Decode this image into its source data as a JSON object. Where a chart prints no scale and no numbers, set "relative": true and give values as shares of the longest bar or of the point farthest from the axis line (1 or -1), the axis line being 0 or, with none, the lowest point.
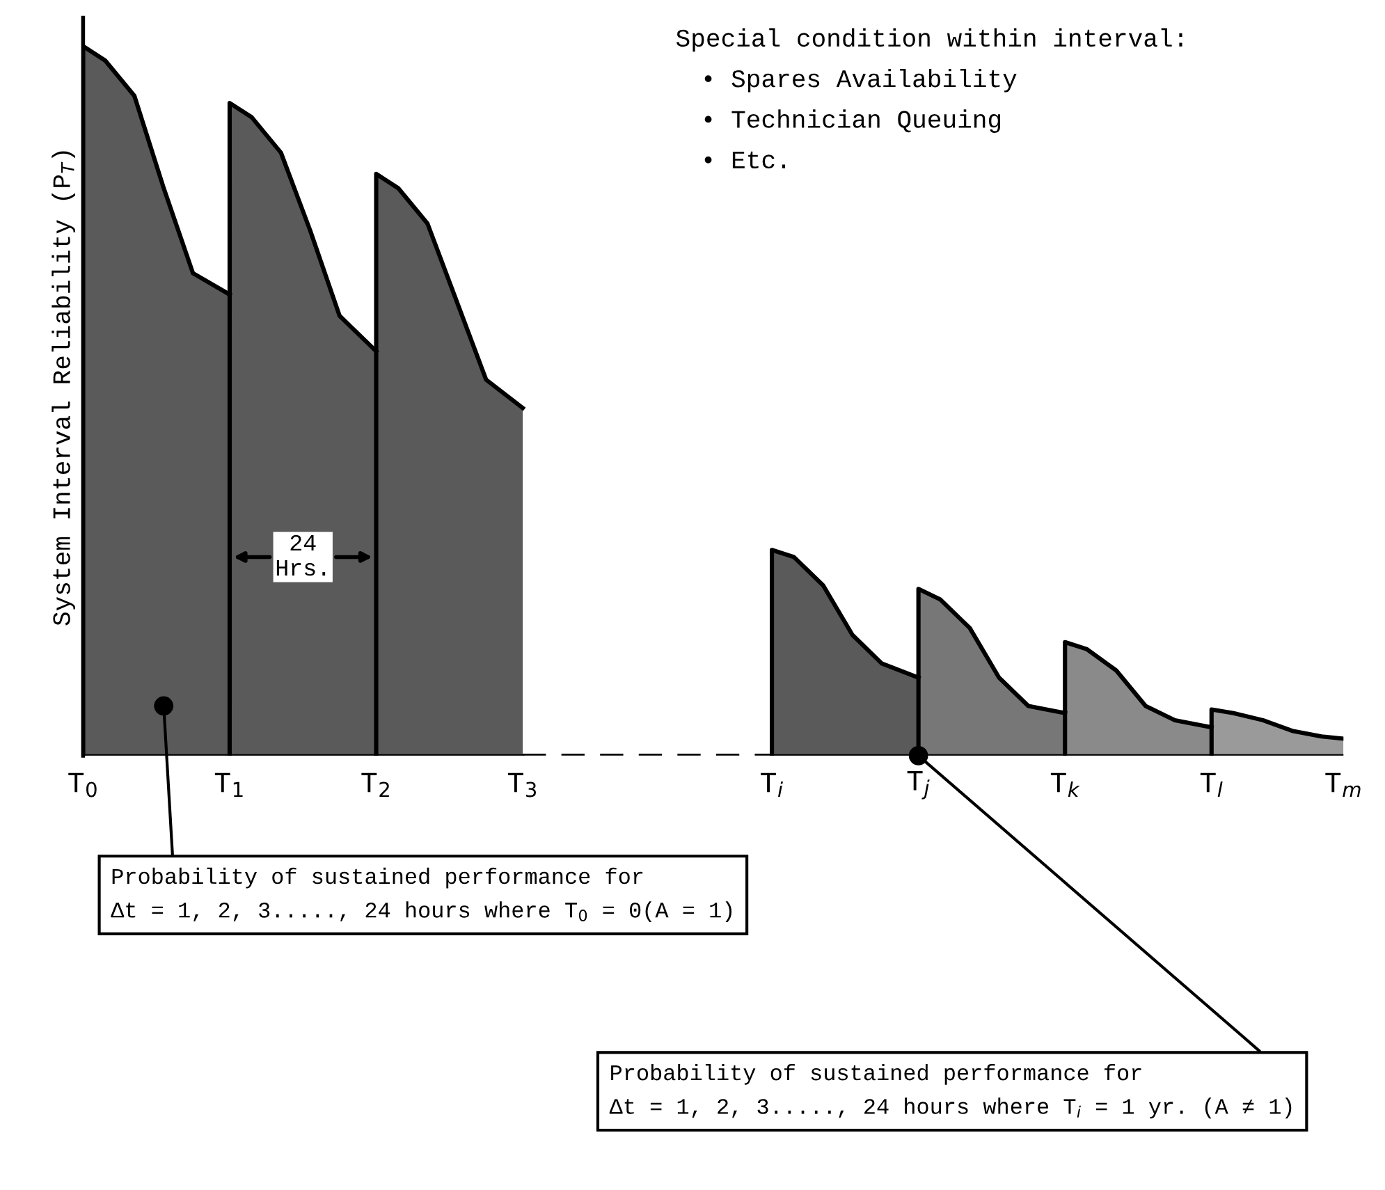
{
  "chart_data": {
    "type": "area",
    "relative": true,
    "ylabel": "System Interval Reliability (P$_{T}$)",
    "xlim": [
      0,
      8.6
    ],
    "xticks": [
      {
        "value": 0,
        "label": "T$_{0}$"
      },
      {
        "value": 1,
        "label": "T$_{1}$"
      },
      {
        "value": 2,
        "label": "T$_{2}$"
      },
      {
        "value": 3,
        "label": "T$_{3}$"
      },
      {
        "value": 4.7,
        "label": "T$_{i}$"
      },
      {
        "value": 5.7,
        "label": "T$_{j}$"
      },
      {
        "value": 6.7,
        "label": "T$_{k}$"
      },
      {
        "value": 7.7,
        "label": "T$_{l}$"
      },
      {
        "value": 8.6,
        "label": "T$_{m}$"
      }
    ],
    "tick_labels": "x",
    "grid": false,
    "legend": false,
    "marker": "none",
    "series": [
      {
        "color": "#5a5a5a",
        "x": [
          0,
          0.15,
          0.35,
          0.55,
          0.75,
          1
        ],
        "values": [
          1.0,
          0.98,
          0.93,
          0.8,
          0.68,
          0.65
        ]
      },
      {
        "color": "#5a5a5a",
        "x": [
          1,
          1.15,
          1.35,
          1.55,
          1.75,
          2
        ],
        "values": [
          0.92,
          0.9,
          0.85,
          0.74,
          0.62,
          0.57
        ]
      },
      {
        "color": "#5a5a5a",
        "x": [
          2,
          2.15,
          2.35,
          2.55,
          2.75,
          3
        ],
        "values": [
          0.82,
          0.8,
          0.75,
          0.64,
          0.53,
          0.49
        ]
      },
      {
        "color": "#000000",
        "type": "line",
        "line_style": "dashed",
        "x": [
          3,
          4.7
        ],
        "values": [
          0,
          0
        ]
      },
      {
        "color": "#5a5a5a",
        "x": [
          4.7,
          4.85,
          5.05,
          5.25,
          5.45,
          5.7
        ],
        "values": [
          0.29,
          0.28,
          0.24,
          0.17,
          0.13,
          0.11
        ]
      },
      {
        "color": "#777777",
        "x": [
          5.7,
          5.85,
          6.05,
          6.25,
          6.45,
          6.7
        ],
        "values": [
          0.235,
          0.22,
          0.18,
          0.11,
          0.07,
          0.06
        ]
      },
      {
        "color": "#8a8a8a",
        "x": [
          6.7,
          6.85,
          7.05,
          7.25,
          7.45,
          7.7
        ],
        "values": [
          0.16,
          0.15,
          0.12,
          0.07,
          0.05,
          0.04
        ]
      },
      {
        "color": "#9a9a9a",
        "x": [
          7.7,
          7.85,
          8.05,
          8.25,
          8.45,
          8.6
        ],
        "values": [
          0.065,
          0.06,
          0.05,
          0.035,
          0.027,
          0.024
        ]
      }
    ],
    "annotations": [
      "Special condition within interval:",
      "• Spares Availability",
      "• Technician Queuing",
      "• Etc.",
      "24\nHrs.",
      {
        "text": "Probability of sustained performance for\nΔt = 1, 2, 3....., 24 hours where T$_{0}$ = 0(A = 1)",
        "x": 0.55,
        "y": 0.07
      },
      {
        "text": "Probability of sustained performance for\nΔt = 1, 2, 3....., 24 hours where T$_{i}$ = 1 yr. (A ≠ 1)",
        "x": 5.7,
        "y": 0
      }
    ]
  }
}
